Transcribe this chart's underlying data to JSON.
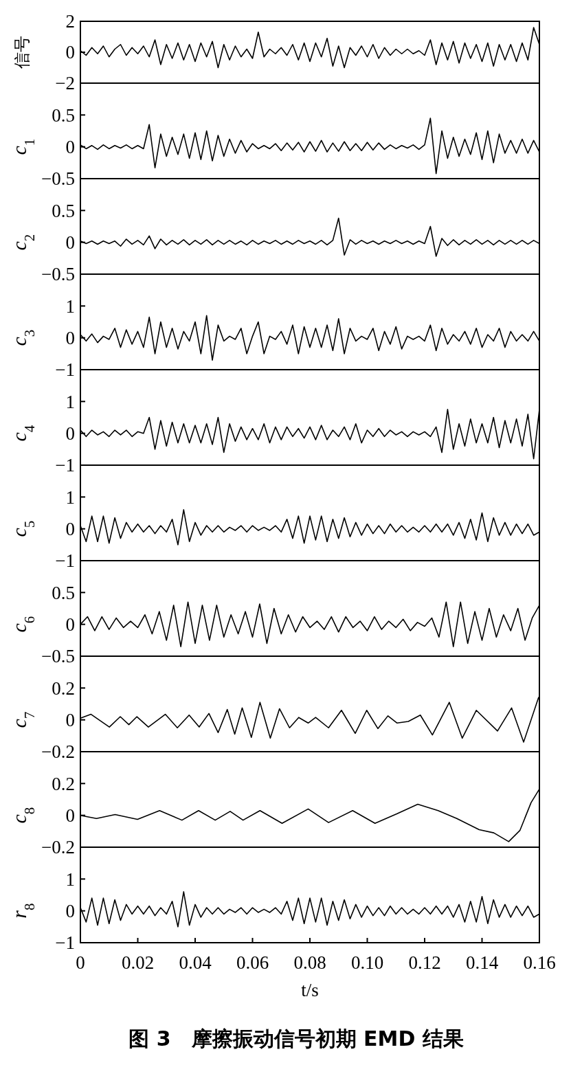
{
  "chart_data": [
    {
      "type": "line",
      "ylabel": "信号",
      "xlim": [
        0,
        0.16
      ],
      "ylim": [
        -2,
        2
      ],
      "yticks": [
        -2,
        0,
        2
      ],
      "tick_labels": "y",
      "x": [
        0,
        0.002,
        0.004,
        0.006,
        0.008,
        0.01,
        0.012,
        0.014,
        0.016,
        0.018,
        0.02,
        0.022,
        0.024,
        0.026,
        0.028,
        0.03,
        0.032,
        0.034,
        0.036,
        0.038,
        0.04,
        0.042,
        0.044,
        0.046,
        0.048,
        0.05,
        0.052,
        0.054,
        0.056,
        0.058,
        0.06,
        0.062,
        0.064,
        0.066,
        0.068,
        0.07,
        0.072,
        0.074,
        0.076,
        0.078,
        0.08,
        0.082,
        0.084,
        0.086,
        0.088,
        0.09,
        0.092,
        0.094,
        0.096,
        0.098,
        0.1,
        0.102,
        0.104,
        0.106,
        0.108,
        0.11,
        0.112,
        0.114,
        0.116,
        0.118,
        0.12,
        0.122,
        0.124,
        0.126,
        0.128,
        0.13,
        0.132,
        0.134,
        0.136,
        0.138,
        0.14,
        0.142,
        0.144,
        0.146,
        0.148,
        0.15,
        0.152,
        0.154,
        0.156,
        0.158,
        0.16
      ],
      "series": [
        {
          "color": "#000000",
          "values": [
            0.1,
            -0.2,
            0.3,
            -0.1,
            0.4,
            -0.3,
            0.2,
            0.5,
            -0.2,
            0.3,
            -0.1,
            0.4,
            -0.3,
            0.8,
            -0.8,
            0.5,
            -0.4,
            0.6,
            -0.5,
            0.5,
            -0.6,
            0.6,
            -0.3,
            0.7,
            -1.0,
            0.5,
            -0.5,
            0.4,
            -0.3,
            0.2,
            -0.4,
            1.3,
            -0.3,
            0.2,
            -0.1,
            0.3,
            -0.2,
            0.5,
            -0.5,
            0.6,
            -0.6,
            0.6,
            -0.3,
            0.9,
            -0.9,
            0.4,
            -1.0,
            0.3,
            -0.2,
            0.4,
            -0.3,
            0.5,
            -0.4,
            0.3,
            -0.2,
            0.2,
            -0.1,
            0.2,
            -0.1,
            0.1,
            -0.2,
            0.8,
            -0.8,
            0.6,
            -0.5,
            0.7,
            -0.7,
            0.6,
            -0.4,
            0.5,
            -0.6,
            0.6,
            -0.9,
            0.5,
            -0.5,
            0.5,
            -0.6,
            0.6,
            -0.5,
            1.6,
            0.5
          ]
        }
      ]
    },
    {
      "type": "line",
      "ylabel": "c$_{1}$",
      "xlim": [
        0,
        0.16
      ],
      "ylim": [
        -0.5,
        1
      ],
      "yticks": [
        -0.5,
        0,
        0.5
      ],
      "tick_labels": "y",
      "x": [
        0,
        0.002,
        0.004,
        0.006,
        0.008,
        0.01,
        0.012,
        0.014,
        0.016,
        0.018,
        0.02,
        0.022,
        0.024,
        0.026,
        0.028,
        0.03,
        0.032,
        0.034,
        0.036,
        0.038,
        0.04,
        0.042,
        0.044,
        0.046,
        0.048,
        0.05,
        0.052,
        0.054,
        0.056,
        0.058,
        0.06,
        0.062,
        0.064,
        0.066,
        0.068,
        0.07,
        0.072,
        0.074,
        0.076,
        0.078,
        0.08,
        0.082,
        0.084,
        0.086,
        0.088,
        0.09,
        0.092,
        0.094,
        0.096,
        0.098,
        0.1,
        0.102,
        0.104,
        0.106,
        0.108,
        0.11,
        0.112,
        0.114,
        0.116,
        0.118,
        0.12,
        0.122,
        0.124,
        0.126,
        0.128,
        0.13,
        0.132,
        0.134,
        0.136,
        0.138,
        0.14,
        0.142,
        0.144,
        0.146,
        0.148,
        0.15,
        0.152,
        0.154,
        0.156,
        0.158,
        0.16
      ],
      "series": [
        {
          "color": "#000000",
          "values": [
            0.03,
            -0.03,
            0.02,
            -0.04,
            0.03,
            -0.03,
            0.02,
            -0.02,
            0.03,
            -0.03,
            0.02,
            -0.03,
            0.35,
            -0.33,
            0.2,
            -0.15,
            0.15,
            -0.12,
            0.2,
            -0.18,
            0.22,
            -0.2,
            0.25,
            -0.22,
            0.18,
            -0.15,
            0.12,
            -0.1,
            0.1,
            -0.08,
            0.05,
            -0.03,
            0.02,
            -0.03,
            0.05,
            -0.06,
            0.06,
            -0.05,
            0.07,
            -0.08,
            0.08,
            -0.07,
            0.1,
            -0.08,
            0.06,
            -0.07,
            0.08,
            -0.06,
            0.05,
            -0.06,
            0.07,
            -0.05,
            0.06,
            -0.04,
            0.03,
            -0.03,
            0.02,
            -0.02,
            0.03,
            -0.04,
            0.03,
            0.45,
            -0.42,
            0.25,
            -0.18,
            0.15,
            -0.15,
            0.12,
            -0.12,
            0.22,
            -0.2,
            0.25,
            -0.25,
            0.2,
            -0.1,
            0.1,
            -0.1,
            0.12,
            -0.1,
            0.1,
            -0.08
          ]
        }
      ]
    },
    {
      "type": "line",
      "ylabel": "c$_{2}$",
      "xlim": [
        0,
        0.16
      ],
      "ylim": [
        -0.5,
        1
      ],
      "yticks": [
        -0.5,
        0,
        0.5
      ],
      "tick_labels": "y",
      "x": [
        0,
        0.002,
        0.004,
        0.006,
        0.008,
        0.01,
        0.012,
        0.014,
        0.016,
        0.018,
        0.02,
        0.022,
        0.024,
        0.026,
        0.028,
        0.03,
        0.032,
        0.034,
        0.036,
        0.038,
        0.04,
        0.042,
        0.044,
        0.046,
        0.048,
        0.05,
        0.052,
        0.054,
        0.056,
        0.058,
        0.06,
        0.062,
        0.064,
        0.066,
        0.068,
        0.07,
        0.072,
        0.074,
        0.076,
        0.078,
        0.08,
        0.082,
        0.084,
        0.086,
        0.088,
        0.09,
        0.092,
        0.094,
        0.096,
        0.098,
        0.1,
        0.102,
        0.104,
        0.106,
        0.108,
        0.11,
        0.112,
        0.114,
        0.116,
        0.118,
        0.12,
        0.122,
        0.124,
        0.126,
        0.128,
        0.13,
        0.132,
        0.134,
        0.136,
        0.138,
        0.14,
        0.142,
        0.144,
        0.146,
        0.148,
        0.15,
        0.152,
        0.154,
        0.156,
        0.158,
        0.16
      ],
      "series": [
        {
          "color": "#000000",
          "values": [
            0.02,
            -0.02,
            0.02,
            -0.03,
            0.02,
            -0.02,
            0.02,
            -0.06,
            0.05,
            -0.03,
            0.03,
            -0.04,
            0.1,
            -0.1,
            0.05,
            -0.04,
            0.03,
            -0.03,
            0.04,
            -0.04,
            0.03,
            -0.03,
            0.04,
            -0.04,
            0.03,
            -0.03,
            0.03,
            -0.03,
            0.02,
            -0.04,
            0.03,
            -0.03,
            0.02,
            -0.02,
            0.03,
            -0.03,
            0.02,
            -0.03,
            0.03,
            -0.02,
            0.02,
            -0.03,
            0.03,
            -0.04,
            0.03,
            0.38,
            -0.2,
            0.04,
            -0.03,
            0.03,
            -0.02,
            0.02,
            -0.03,
            0.02,
            -0.02,
            0.03,
            -0.02,
            0.02,
            -0.03,
            0.02,
            -0.02,
            0.25,
            -0.22,
            0.06,
            -0.05,
            0.04,
            -0.04,
            0.03,
            -0.03,
            0.04,
            -0.03,
            0.03,
            -0.04,
            0.03,
            -0.03,
            0.03,
            -0.03,
            0.03,
            -0.03,
            0.03,
            -0.02
          ]
        }
      ]
    },
    {
      "type": "line",
      "ylabel": "c$_{3}$",
      "xlim": [
        0,
        0.16
      ],
      "ylim": [
        -1,
        2
      ],
      "yticks": [
        -1,
        0,
        1
      ],
      "tick_labels": "y",
      "x": [
        0,
        0.002,
        0.004,
        0.006,
        0.008,
        0.01,
        0.012,
        0.014,
        0.016,
        0.018,
        0.02,
        0.022,
        0.024,
        0.026,
        0.028,
        0.03,
        0.032,
        0.034,
        0.036,
        0.038,
        0.04,
        0.042,
        0.044,
        0.046,
        0.048,
        0.05,
        0.052,
        0.054,
        0.056,
        0.058,
        0.06,
        0.062,
        0.064,
        0.066,
        0.068,
        0.07,
        0.072,
        0.074,
        0.076,
        0.078,
        0.08,
        0.082,
        0.084,
        0.086,
        0.088,
        0.09,
        0.092,
        0.094,
        0.096,
        0.098,
        0.1,
        0.102,
        0.104,
        0.106,
        0.108,
        0.11,
        0.112,
        0.114,
        0.116,
        0.118,
        0.12,
        0.122,
        0.124,
        0.126,
        0.128,
        0.13,
        0.132,
        0.134,
        0.136,
        0.138,
        0.14,
        0.142,
        0.144,
        0.146,
        0.148,
        0.15,
        0.152,
        0.154,
        0.156,
        0.158,
        0.16
      ],
      "series": [
        {
          "color": "#000000",
          "values": [
            0.1,
            -0.1,
            0.12,
            -0.15,
            0.05,
            -0.05,
            0.3,
            -0.3,
            0.25,
            -0.2,
            0.2,
            -0.3,
            0.65,
            -0.5,
            0.5,
            -0.3,
            0.3,
            -0.35,
            0.2,
            -0.1,
            0.5,
            -0.5,
            0.7,
            -0.7,
            0.4,
            -0.1,
            0.05,
            -0.05,
            0.3,
            -0.5,
            0.05,
            0.5,
            -0.5,
            0.05,
            -0.05,
            0.2,
            -0.2,
            0.4,
            -0.5,
            0.35,
            -0.3,
            0.3,
            -0.3,
            0.4,
            -0.4,
            0.6,
            -0.5,
            0.3,
            -0.1,
            0.05,
            -0.05,
            0.3,
            -0.4,
            0.2,
            -0.2,
            0.35,
            -0.35,
            0.05,
            -0.05,
            0.05,
            -0.1,
            0.4,
            -0.4,
            0.3,
            -0.2,
            0.1,
            -0.1,
            0.2,
            -0.2,
            0.3,
            -0.3,
            0.1,
            -0.1,
            0.3,
            -0.3,
            0.2,
            -0.1,
            0.1,
            -0.1,
            0.2,
            -0.1
          ]
        }
      ]
    },
    {
      "type": "line",
      "ylabel": "c$_{4}$",
      "xlim": [
        0,
        0.16
      ],
      "ylim": [
        -1,
        2
      ],
      "yticks": [
        -1,
        0,
        1
      ],
      "tick_labels": "y",
      "x": [
        0,
        0.002,
        0.004,
        0.006,
        0.008,
        0.01,
        0.012,
        0.014,
        0.016,
        0.018,
        0.02,
        0.022,
        0.024,
        0.026,
        0.028,
        0.03,
        0.032,
        0.034,
        0.036,
        0.038,
        0.04,
        0.042,
        0.044,
        0.046,
        0.048,
        0.05,
        0.052,
        0.054,
        0.056,
        0.058,
        0.06,
        0.062,
        0.064,
        0.066,
        0.068,
        0.07,
        0.072,
        0.074,
        0.076,
        0.078,
        0.08,
        0.082,
        0.084,
        0.086,
        0.088,
        0.09,
        0.092,
        0.094,
        0.096,
        0.098,
        0.1,
        0.102,
        0.104,
        0.106,
        0.108,
        0.11,
        0.112,
        0.114,
        0.116,
        0.118,
        0.12,
        0.122,
        0.124,
        0.126,
        0.128,
        0.13,
        0.132,
        0.134,
        0.136,
        0.138,
        0.14,
        0.142,
        0.144,
        0.146,
        0.148,
        0.15,
        0.152,
        0.154,
        0.156,
        0.158,
        0.16
      ],
      "series": [
        {
          "color": "#000000",
          "values": [
            0.1,
            -0.1,
            0.1,
            -0.05,
            0.05,
            -0.1,
            0.1,
            -0.05,
            0.1,
            -0.1,
            0.05,
            0,
            0.5,
            -0.5,
            0.4,
            -0.4,
            0.35,
            -0.3,
            0.3,
            -0.3,
            0.25,
            -0.3,
            0.3,
            -0.35,
            0.5,
            -0.6,
            0.3,
            -0.25,
            0.2,
            -0.2,
            0.15,
            -0.2,
            0.3,
            -0.3,
            0.2,
            -0.2,
            0.2,
            -0.1,
            0.15,
            -0.15,
            0.2,
            -0.2,
            0.25,
            -0.2,
            0.1,
            -0.1,
            0.2,
            -0.2,
            0.3,
            -0.3,
            0.1,
            -0.1,
            0.15,
            -0.1,
            0.1,
            -0.05,
            0.05,
            -0.1,
            0.05,
            -0.05,
            0.05,
            -0.1,
            0.2,
            -0.6,
            0.75,
            -0.5,
            0.3,
            -0.4,
            0.45,
            -0.3,
            0.3,
            -0.3,
            0.5,
            -0.45,
            0.4,
            -0.3,
            0.45,
            -0.4,
            0.6,
            -0.8,
            0.75
          ]
        }
      ]
    },
    {
      "type": "line",
      "ylabel": "c$_{5}$",
      "xlim": [
        0,
        0.16
      ],
      "ylim": [
        -1,
        2
      ],
      "yticks": [
        -1,
        0,
        1
      ],
      "tick_labels": "y",
      "x": [
        0,
        0.002,
        0.004,
        0.006,
        0.008,
        0.01,
        0.012,
        0.014,
        0.016,
        0.018,
        0.02,
        0.022,
        0.024,
        0.026,
        0.028,
        0.03,
        0.032,
        0.034,
        0.036,
        0.038,
        0.04,
        0.042,
        0.044,
        0.046,
        0.048,
        0.05,
        0.052,
        0.054,
        0.056,
        0.058,
        0.06,
        0.062,
        0.064,
        0.066,
        0.068,
        0.07,
        0.072,
        0.074,
        0.076,
        0.078,
        0.08,
        0.082,
        0.084,
        0.086,
        0.088,
        0.09,
        0.092,
        0.094,
        0.096,
        0.098,
        0.1,
        0.102,
        0.104,
        0.106,
        0.108,
        0.11,
        0.112,
        0.114,
        0.116,
        0.118,
        0.12,
        0.122,
        0.124,
        0.126,
        0.128,
        0.13,
        0.132,
        0.134,
        0.136,
        0.138,
        0.14,
        0.142,
        0.144,
        0.146,
        0.148,
        0.15,
        0.152,
        0.154,
        0.156,
        0.158,
        0.16
      ],
      "series": [
        {
          "color": "#000000",
          "values": [
            0.1,
            -0.4,
            0.4,
            -0.4,
            0.4,
            -0.45,
            0.35,
            -0.3,
            0.2,
            -0.1,
            0.15,
            -0.1,
            0.1,
            -0.15,
            0.1,
            -0.1,
            0.3,
            -0.5,
            0.6,
            -0.4,
            0.2,
            -0.2,
            0.1,
            -0.1,
            0.1,
            -0.1,
            0.05,
            -0.05,
            0.1,
            -0.1,
            0.1,
            -0.05,
            0.05,
            -0.05,
            0.1,
            -0.1,
            0.3,
            -0.3,
            0.4,
            -0.45,
            0.4,
            -0.35,
            0.4,
            -0.4,
            0.3,
            -0.3,
            0.35,
            -0.25,
            0.2,
            -0.2,
            0.15,
            -0.15,
            0.1,
            -0.15,
            0.15,
            -0.1,
            0.1,
            -0.1,
            0.05,
            -0.1,
            0.1,
            -0.1,
            0.15,
            -0.1,
            0.15,
            -0.2,
            0.2,
            -0.3,
            0.3,
            -0.35,
            0.5,
            -0.4,
            0.35,
            -0.2,
            0.2,
            -0.2,
            0.15,
            -0.15,
            0.15,
            -0.2,
            -0.1
          ]
        }
      ]
    },
    {
      "type": "line",
      "ylabel": "c$_{6}$",
      "xlim": [
        0,
        0.16
      ],
      "ylim": [
        -0.5,
        1
      ],
      "yticks": [
        -0.5,
        0,
        0.5
      ],
      "tick_labels": "y",
      "x": [
        0,
        0.0025,
        0.005,
        0.0075,
        0.01,
        0.0125,
        0.015,
        0.0175,
        0.02,
        0.0225,
        0.025,
        0.0275,
        0.03,
        0.0325,
        0.035,
        0.0375,
        0.04,
        0.0425,
        0.045,
        0.0475,
        0.05,
        0.0525,
        0.055,
        0.0575,
        0.06,
        0.0625,
        0.065,
        0.0675,
        0.07,
        0.0725,
        0.075,
        0.0775,
        0.08,
        0.0825,
        0.085,
        0.0875,
        0.09,
        0.0925,
        0.095,
        0.0975,
        0.1,
        0.1025,
        0.105,
        0.1075,
        0.11,
        0.1125,
        0.115,
        0.1175,
        0.12,
        0.1225,
        0.125,
        0.1275,
        0.13,
        0.1325,
        0.135,
        0.1375,
        0.14,
        0.1425,
        0.145,
        0.1475,
        0.15,
        0.1525,
        0.155,
        0.1575,
        0.16
      ],
      "series": [
        {
          "color": "#000000",
          "values": [
            0,
            0.12,
            -0.1,
            0.12,
            -0.08,
            0.1,
            -0.05,
            0.05,
            -0.05,
            0.15,
            -0.15,
            0.2,
            -0.25,
            0.3,
            -0.35,
            0.35,
            -0.3,
            0.3,
            -0.25,
            0.3,
            -0.2,
            0.15,
            -0.15,
            0.2,
            -0.2,
            0.32,
            -0.3,
            0.25,
            -0.15,
            0.15,
            -0.12,
            0.12,
            -0.05,
            0.05,
            -0.08,
            0.12,
            -0.12,
            0.12,
            -0.05,
            0.05,
            -0.1,
            0.12,
            -0.08,
            0.05,
            -0.05,
            0.08,
            -0.1,
            0.03,
            -0.03,
            0.1,
            -0.2,
            0.35,
            -0.35,
            0.35,
            -0.3,
            0.2,
            -0.25,
            0.25,
            -0.2,
            0.15,
            -0.1,
            0.25,
            -0.25,
            0.1,
            0.3
          ]
        }
      ]
    },
    {
      "type": "line",
      "ylabel": "c$_{7}$",
      "xlim": [
        0,
        0.16
      ],
      "ylim": [
        -0.2,
        0.4
      ],
      "yticks": [
        -0.2,
        0,
        0.2
      ],
      "tick_labels": "y",
      "x": [
        0,
        0.0037,
        0.0101,
        0.0139,
        0.0169,
        0.0197,
        0.0237,
        0.0296,
        0.0338,
        0.0379,
        0.0414,
        0.0448,
        0.048,
        0.0512,
        0.0538,
        0.0564,
        0.0596,
        0.0626,
        0.0662,
        0.0694,
        0.0729,
        0.0761,
        0.0794,
        0.082,
        0.0865,
        0.091,
        0.0958,
        0.0998,
        0.1037,
        0.1072,
        0.1104,
        0.1143,
        0.1185,
        0.1227,
        0.1286,
        0.1331,
        0.138,
        0.1454,
        0.1503,
        0.1545,
        0.1597,
        0.16
      ],
      "series": [
        {
          "color": "#000000",
          "values": [
            0.01,
            0.035,
            -0.045,
            0.02,
            -0.03,
            0.02,
            -0.045,
            0.035,
            -0.05,
            0.03,
            -0.045,
            0.04,
            -0.08,
            0.065,
            -0.09,
            0.075,
            -0.11,
            0.11,
            -0.115,
            0.07,
            -0.05,
            0.015,
            -0.02,
            0.015,
            -0.05,
            0.06,
            -0.085,
            0.06,
            -0.055,
            0.025,
            -0.02,
            -0.01,
            0.03,
            -0.095,
            0.11,
            -0.115,
            0.06,
            -0.07,
            0.075,
            -0.14,
            0.14,
            0.145
          ]
        }
      ]
    },
    {
      "type": "line",
      "ylabel": "c$_{8}$",
      "xlim": [
        0,
        0.16
      ],
      "ylim": [
        -0.2,
        0.4
      ],
      "yticks": [
        -0.2,
        0,
        0.2
      ],
      "tick_labels": "y",
      "x": [
        0,
        0.0056,
        0.0121,
        0.0199,
        0.0276,
        0.0354,
        0.0412,
        0.047,
        0.0522,
        0.0567,
        0.0626,
        0.0703,
        0.0794,
        0.0865,
        0.0949,
        0.1027,
        0.1104,
        0.1176,
        0.1247,
        0.1312,
        0.139,
        0.1441,
        0.1493,
        0.1532,
        0.1571,
        0.16
      ],
      "series": [
        {
          "color": "#000000",
          "values": [
            0,
            -0.02,
            0.005,
            -0.025,
            0.03,
            -0.03,
            0.03,
            -0.03,
            0.025,
            -0.03,
            0.03,
            -0.05,
            0.04,
            -0.045,
            0.03,
            -0.05,
            0.01,
            0.07,
            0.03,
            -0.02,
            -0.09,
            -0.11,
            -0.165,
            -0.095,
            0.08,
            0.165
          ]
        }
      ]
    },
    {
      "type": "line",
      "ylabel": "r$_{8}$",
      "xlabel": "t/s",
      "xlim": [
        0,
        0.16
      ],
      "ylim": [
        -1,
        2
      ],
      "yticks": [
        -1,
        0,
        1
      ],
      "xticks": [
        0,
        0.02,
        0.04,
        0.06,
        0.08,
        {
          "value": 0.1,
          "label": "0.10"
        },
        0.12,
        0.14,
        0.16
      ],
      "annotations": [
        "图 3　摩擦振动信号初期 EMD 结果"
      ],
      "x": [
        0,
        0.002,
        0.004,
        0.006,
        0.008,
        0.01,
        0.012,
        0.014,
        0.016,
        0.018,
        0.02,
        0.022,
        0.024,
        0.026,
        0.028,
        0.03,
        0.032,
        0.034,
        0.036,
        0.038,
        0.04,
        0.042,
        0.044,
        0.046,
        0.048,
        0.05,
        0.052,
        0.054,
        0.056,
        0.058,
        0.06,
        0.062,
        0.064,
        0.066,
        0.068,
        0.07,
        0.072,
        0.074,
        0.076,
        0.078,
        0.08,
        0.082,
        0.084,
        0.086,
        0.088,
        0.09,
        0.092,
        0.094,
        0.096,
        0.098,
        0.1,
        0.102,
        0.104,
        0.106,
        0.108,
        0.11,
        0.112,
        0.114,
        0.116,
        0.118,
        0.12,
        0.122,
        0.124,
        0.126,
        0.128,
        0.13,
        0.132,
        0.134,
        0.136,
        0.138,
        0.14,
        0.142,
        0.144,
        0.146,
        0.148,
        0.15,
        0.152,
        0.154,
        0.156,
        0.158,
        0.16
      ],
      "series": [
        {
          "color": "#000000",
          "values": [
            0.1,
            -0.35,
            0.4,
            -0.45,
            0.4,
            -0.4,
            0.35,
            -0.3,
            0.2,
            -0.1,
            0.15,
            -0.1,
            0.15,
            -0.15,
            0.1,
            -0.1,
            0.3,
            -0.5,
            0.6,
            -0.45,
            0.2,
            -0.2,
            0.1,
            -0.1,
            0.1,
            -0.1,
            0.05,
            -0.05,
            0.1,
            -0.1,
            0.1,
            -0.05,
            0.05,
            -0.05,
            0.1,
            -0.1,
            0.3,
            -0.3,
            0.4,
            -0.4,
            0.4,
            -0.35,
            0.4,
            -0.45,
            0.3,
            -0.3,
            0.35,
            -0.25,
            0.2,
            -0.2,
            0.15,
            -0.15,
            0.1,
            -0.15,
            0.15,
            -0.1,
            0.1,
            -0.1,
            0.05,
            -0.1,
            0.1,
            -0.1,
            0.15,
            -0.1,
            0.15,
            -0.2,
            0.2,
            -0.35,
            0.3,
            -0.35,
            0.45,
            -0.4,
            0.35,
            -0.2,
            0.2,
            -0.2,
            0.15,
            -0.15,
            0.15,
            -0.2,
            -0.1
          ]
        }
      ]
    }
  ]
}
